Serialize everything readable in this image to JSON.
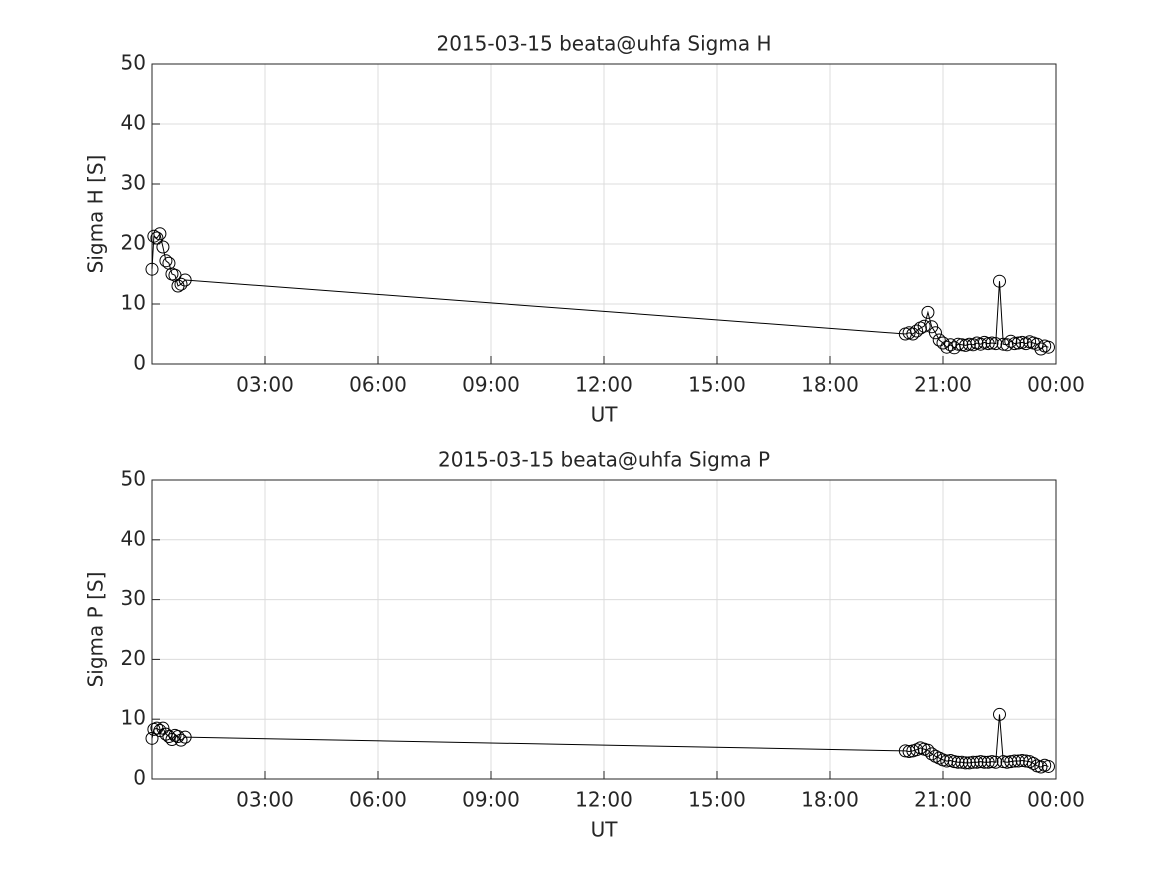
{
  "chart_data": [
    {
      "type": "line",
      "title": "2015-03-15  beata@uhfa Sigma H",
      "xlabel": "UT",
      "ylabel": "Sigma H [S]",
      "x": [
        0,
        0.05,
        0.13,
        0.21,
        0.29,
        0.37,
        0.45,
        0.53,
        0.61,
        0.69,
        0.77,
        0.88,
        20.0,
        20.1,
        20.2,
        20.3,
        20.4,
        20.5,
        20.6,
        20.7,
        20.8,
        20.9,
        21.0,
        21.1,
        21.2,
        21.3,
        21.4,
        21.5,
        21.6,
        21.7,
        21.8,
        21.9,
        22.0,
        22.1,
        22.2,
        22.3,
        22.4,
        22.5,
        22.6,
        22.7,
        22.8,
        22.9,
        23.0,
        23.1,
        23.2,
        23.3,
        23.4,
        23.5,
        23.6,
        23.7,
        23.8
      ],
      "values": [
        15.8,
        21.3,
        21.0,
        21.7,
        19.5,
        17.2,
        16.8,
        15.0,
        14.8,
        13.0,
        13.3,
        14.0,
        5.0,
        5.2,
        5.0,
        5.5,
        6.0,
        6.3,
        8.6,
        6.2,
        5.2,
        4.0,
        3.5,
        2.8,
        3.2,
        2.7,
        3.3,
        3.2,
        3.1,
        3.3,
        3.2,
        3.5,
        3.3,
        3.6,
        3.4,
        3.5,
        3.4,
        13.8,
        3.3,
        3.2,
        3.8,
        3.4,
        3.5,
        3.6,
        3.4,
        3.7,
        3.5,
        3.3,
        2.5,
        3.0,
        2.8
      ],
      "color": "#000000",
      "marker": "circle",
      "grid": true,
      "xlim": [
        0,
        24
      ],
      "xticks": [
        {
          "value": 3,
          "label": "03:00"
        },
        {
          "value": 6,
          "label": "06:00"
        },
        {
          "value": 9,
          "label": "09:00"
        },
        {
          "value": 12,
          "label": "12:00"
        },
        {
          "value": 15,
          "label": "15:00"
        },
        {
          "value": 18,
          "label": "18:00"
        },
        {
          "value": 21,
          "label": "21:00"
        },
        {
          "value": 24,
          "label": "00:00"
        }
      ],
      "ylim": [
        0,
        50
      ],
      "yticks": [
        0,
        10,
        20,
        30,
        40,
        50
      ]
    },
    {
      "type": "line",
      "title": "2015-03-15  beata@uhfa Sigma P",
      "xlabel": "UT",
      "ylabel": "Sigma P [S]",
      "x": [
        0,
        0.05,
        0.13,
        0.21,
        0.29,
        0.37,
        0.45,
        0.53,
        0.61,
        0.69,
        0.77,
        0.88,
        20.0,
        20.1,
        20.2,
        20.3,
        20.4,
        20.5,
        20.6,
        20.7,
        20.8,
        20.9,
        21.0,
        21.1,
        21.2,
        21.3,
        21.4,
        21.5,
        21.6,
        21.7,
        21.8,
        21.9,
        22.0,
        22.1,
        22.2,
        22.3,
        22.4,
        22.5,
        22.6,
        22.7,
        22.8,
        22.9,
        23.0,
        23.1,
        23.2,
        23.3,
        23.4,
        23.5,
        23.6,
        23.7,
        23.8
      ],
      "values": [
        6.8,
        8.3,
        8.5,
        8.1,
        8.5,
        7.5,
        7.1,
        6.6,
        7.3,
        7.1,
        6.5,
        7.0,
        4.7,
        4.6,
        4.7,
        4.9,
        5.2,
        5.0,
        4.8,
        4.2,
        3.8,
        3.5,
        3.2,
        3.0,
        3.1,
        2.9,
        2.8,
        2.8,
        2.7,
        2.7,
        2.8,
        2.8,
        2.9,
        2.8,
        2.8,
        2.9,
        2.8,
        10.8,
        2.9,
        2.8,
        2.9,
        3.0,
        3.0,
        3.1,
        3.0,
        2.9,
        2.6,
        2.2,
        2.0,
        2.3,
        2.1
      ],
      "color": "#000000",
      "marker": "circle",
      "grid": true,
      "xlim": [
        0,
        24
      ],
      "xticks": [
        {
          "value": 3,
          "label": "03:00"
        },
        {
          "value": 6,
          "label": "06:00"
        },
        {
          "value": 9,
          "label": "09:00"
        },
        {
          "value": 12,
          "label": "12:00"
        },
        {
          "value": 15,
          "label": "15:00"
        },
        {
          "value": 18,
          "label": "18:00"
        },
        {
          "value": 21,
          "label": "21:00"
        },
        {
          "value": 24,
          "label": "00:00"
        }
      ],
      "ylim": [
        0,
        50
      ],
      "yticks": [
        0,
        10,
        20,
        30,
        40,
        50
      ]
    }
  ]
}
